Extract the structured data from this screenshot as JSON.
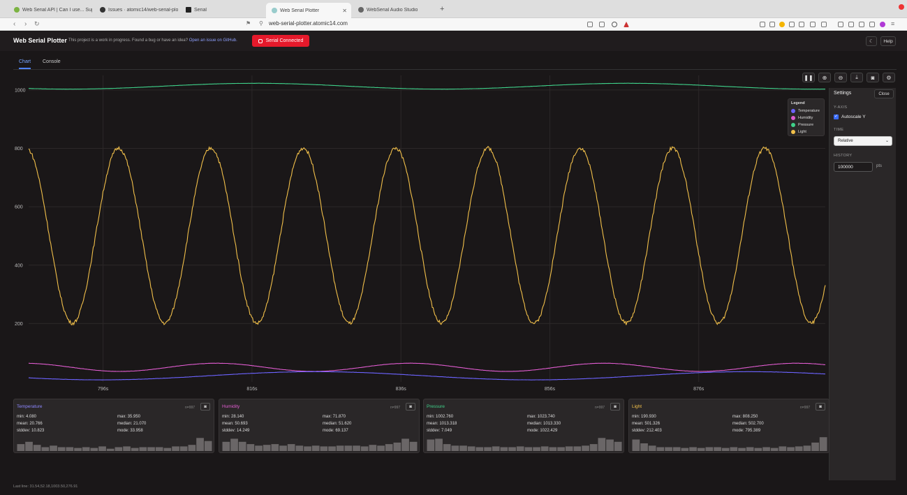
{
  "browser": {
    "tabs": [
      {
        "label": "Web Serial API | Can I use... Supp",
        "active": false
      },
      {
        "label": "Issues · atomic14/web-serial-plott",
        "active": false
      },
      {
        "label": "Serial",
        "active": false
      },
      {
        "label": "Web Serial Plotter",
        "active": true
      },
      {
        "label": "WebSerial Audio Studio",
        "active": false
      }
    ],
    "new_tab": "+",
    "url": "web-serial-plotter.atomic14.com"
  },
  "app": {
    "title": "Web Serial Plotter",
    "note": "This project is a work in progress. Found a bug or have an idea?",
    "note_link": "Open an issue on GitHub.",
    "connect_label": "Serial Connected",
    "help_label": "Help",
    "theme_icon": "moon-icon"
  },
  "tabs": {
    "chart": "Chart",
    "console": "Console"
  },
  "toolbar": [
    "pause-icon",
    "zoom-in-icon",
    "zoom-out-icon",
    "download-icon",
    "camera-icon",
    "settings-icon"
  ],
  "legend": {
    "title": "Legend",
    "items": [
      {
        "name": "Temperature",
        "color": "#6c63ff"
      },
      {
        "name": "Humidity",
        "color": "#e05cd0"
      },
      {
        "name": "Pressure",
        "color": "#3fd18a"
      },
      {
        "name": "Light",
        "color": "#f2c04a"
      }
    ]
  },
  "settings": {
    "title": "Settings",
    "close": "Close",
    "yaxis_label": "Y-AXIS",
    "autoscale_label": "Autoscale Y",
    "autoscale": true,
    "time_label": "TIME",
    "time_value": "Relative",
    "history_label": "HISTORY",
    "history_value": "100000",
    "history_unit": "pts"
  },
  "chart_data": {
    "type": "line",
    "ylim": [
      0,
      1050
    ],
    "yticks": [
      "1000",
      "800",
      "600",
      "400",
      "200"
    ],
    "ytick_values": [
      1000,
      800,
      600,
      400,
      200
    ],
    "xlim": [
      786,
      893
    ],
    "xticks": [
      "796s",
      "816s",
      "836s",
      "856s",
      "876s"
    ],
    "xtick_values": [
      796,
      816,
      836,
      856,
      876
    ],
    "series": [
      {
        "name": "Pressure",
        "color": "#3fd18a",
        "mean": 1013,
        "amp": 10,
        "period": 50,
        "phase": -0.5
      },
      {
        "name": "Light",
        "color": "#f2c04a",
        "mean": 501,
        "amp": 300,
        "period": 12.4,
        "phase": -0.7
      },
      {
        "name": "Humidity",
        "color": "#e05cd0",
        "mean": 50,
        "amp": 14,
        "period": 26,
        "phase": 0.3
      },
      {
        "name": "Temperature",
        "color": "#6c63ff",
        "mean": 21,
        "amp": 14,
        "period": 58,
        "phase": 0.2
      }
    ]
  },
  "stats": [
    {
      "name": "Temperature",
      "color": "#8d87ff",
      "count": "n=997",
      "min": "min: 4.080",
      "max": "max: 35.950",
      "mean": "mean: 20.766",
      "median": "median: 21.070",
      "stddev": "stddev: 10.823",
      "mode": "mode: 33.958",
      "hist": [
        0.45,
        0.6,
        0.4,
        0.25,
        0.35,
        0.25,
        0.25,
        0.2,
        0.25,
        0.2,
        0.3,
        0.15,
        0.25,
        0.3,
        0.2,
        0.25,
        0.25,
        0.25,
        0.2,
        0.3,
        0.3,
        0.4,
        0.85,
        0.65
      ]
    },
    {
      "name": "Humidity",
      "color": "#e05cd0",
      "count": "n=997",
      "min": "min: 28.140",
      "max": "max: 71.870",
      "mean": "mean: 50.693",
      "median": "median: 51.620",
      "stddev": "stddev: 14.249",
      "mode": "mode: 69.137",
      "hist": [
        0.6,
        0.8,
        0.6,
        0.45,
        0.35,
        0.4,
        0.45,
        0.35,
        0.45,
        0.35,
        0.3,
        0.35,
        0.3,
        0.3,
        0.35,
        0.35,
        0.35,
        0.3,
        0.4,
        0.35,
        0.45,
        0.55,
        0.8,
        0.6
      ]
    },
    {
      "name": "Pressure",
      "color": "#3fd18a",
      "count": "n=997",
      "min": "min: 1002.760",
      "max": "max: 1023.740",
      "mean": "mean: 1013.318",
      "median": "median: 1013.330",
      "stddev": "stddev: 7.049",
      "mode": "mode: 1022.429",
      "hist": [
        0.75,
        0.8,
        0.45,
        0.35,
        0.35,
        0.3,
        0.25,
        0.25,
        0.3,
        0.25,
        0.25,
        0.3,
        0.25,
        0.25,
        0.3,
        0.25,
        0.25,
        0.3,
        0.3,
        0.35,
        0.45,
        0.85,
        0.75,
        0.6
      ]
    },
    {
      "name": "Light",
      "color": "#f2c04a",
      "count": "n=997",
      "min": "min: 190.930",
      "max": "max: 808.250",
      "mean": "mean: 501.326",
      "median": "median: 502.700",
      "stddev": "stddev: 212.403",
      "mode": "mode: 795.389",
      "hist": [
        0.75,
        0.5,
        0.35,
        0.25,
        0.25,
        0.25,
        0.2,
        0.25,
        0.2,
        0.25,
        0.25,
        0.2,
        0.25,
        0.2,
        0.25,
        0.2,
        0.25,
        0.2,
        0.3,
        0.25,
        0.3,
        0.35,
        0.55,
        0.9
      ]
    }
  ],
  "last_line": "Last line: 31.54,52.18,1003.50,276.91"
}
